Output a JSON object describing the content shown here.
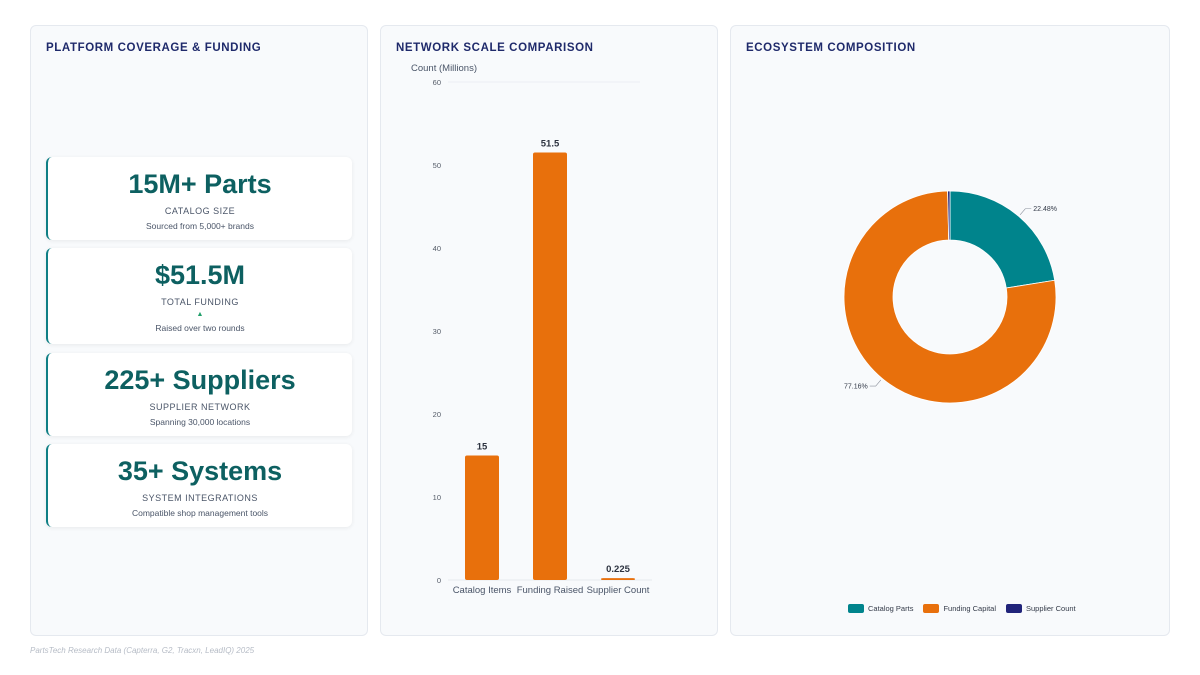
{
  "panels": {
    "coverage_title": "PLATFORM COVERAGE & FUNDING",
    "bar_title": "NETWORK SCALE COMPARISON",
    "pie_title": "ECOSYSTEM COMPOSITION"
  },
  "kpis": [
    {
      "value": "15M+ Parts",
      "label": "CATALOG SIZE",
      "sub": "Sourced from 5,000+ brands"
    },
    {
      "value": "$51.5M",
      "label": "TOTAL FUNDING",
      "arrow": "▲",
      "sub": "Raised over two rounds"
    },
    {
      "value": "225+ Suppliers",
      "label": "SUPPLIER NETWORK",
      "sub": "Spanning 30,000 locations"
    },
    {
      "value": "35+ Systems",
      "label": "SYSTEM INTEGRATIONS",
      "sub": "Compatible shop management tools"
    }
  ],
  "footer": "PartsTech Research Data (Capterra, G2, Tracxn, LeadIQ) 2025",
  "colors": {
    "teal": "#00848c",
    "orange": "#e8700c",
    "navy": "#21247a"
  },
  "chart_data": [
    {
      "type": "bar",
      "title": "NETWORK SCALE COMPARISON",
      "ylabel": "Count (Millions)",
      "xlabel": "",
      "categories": [
        "Catalog Items",
        "Funding Raised",
        "Supplier Count"
      ],
      "values": [
        15,
        51.5,
        0.225
      ],
      "value_labels": [
        "15",
        "51.5",
        "0.225"
      ],
      "ylim": [
        0,
        60
      ],
      "yticks": [
        0,
        10,
        20,
        30,
        40,
        50,
        60
      ],
      "color": "#e8700c",
      "grid": false
    },
    {
      "type": "pie",
      "title": "ECOSYSTEM COMPOSITION",
      "donut": true,
      "categories": [
        "Catalog Parts",
        "Funding Capital",
        "Supplier Count"
      ],
      "values": [
        22.48,
        77.16,
        0.36
      ],
      "labels": [
        "22.48%",
        "77.16%",
        ""
      ],
      "colors": [
        "#00848c",
        "#e8700c",
        "#21247a"
      ],
      "legend_position": "bottom"
    }
  ]
}
